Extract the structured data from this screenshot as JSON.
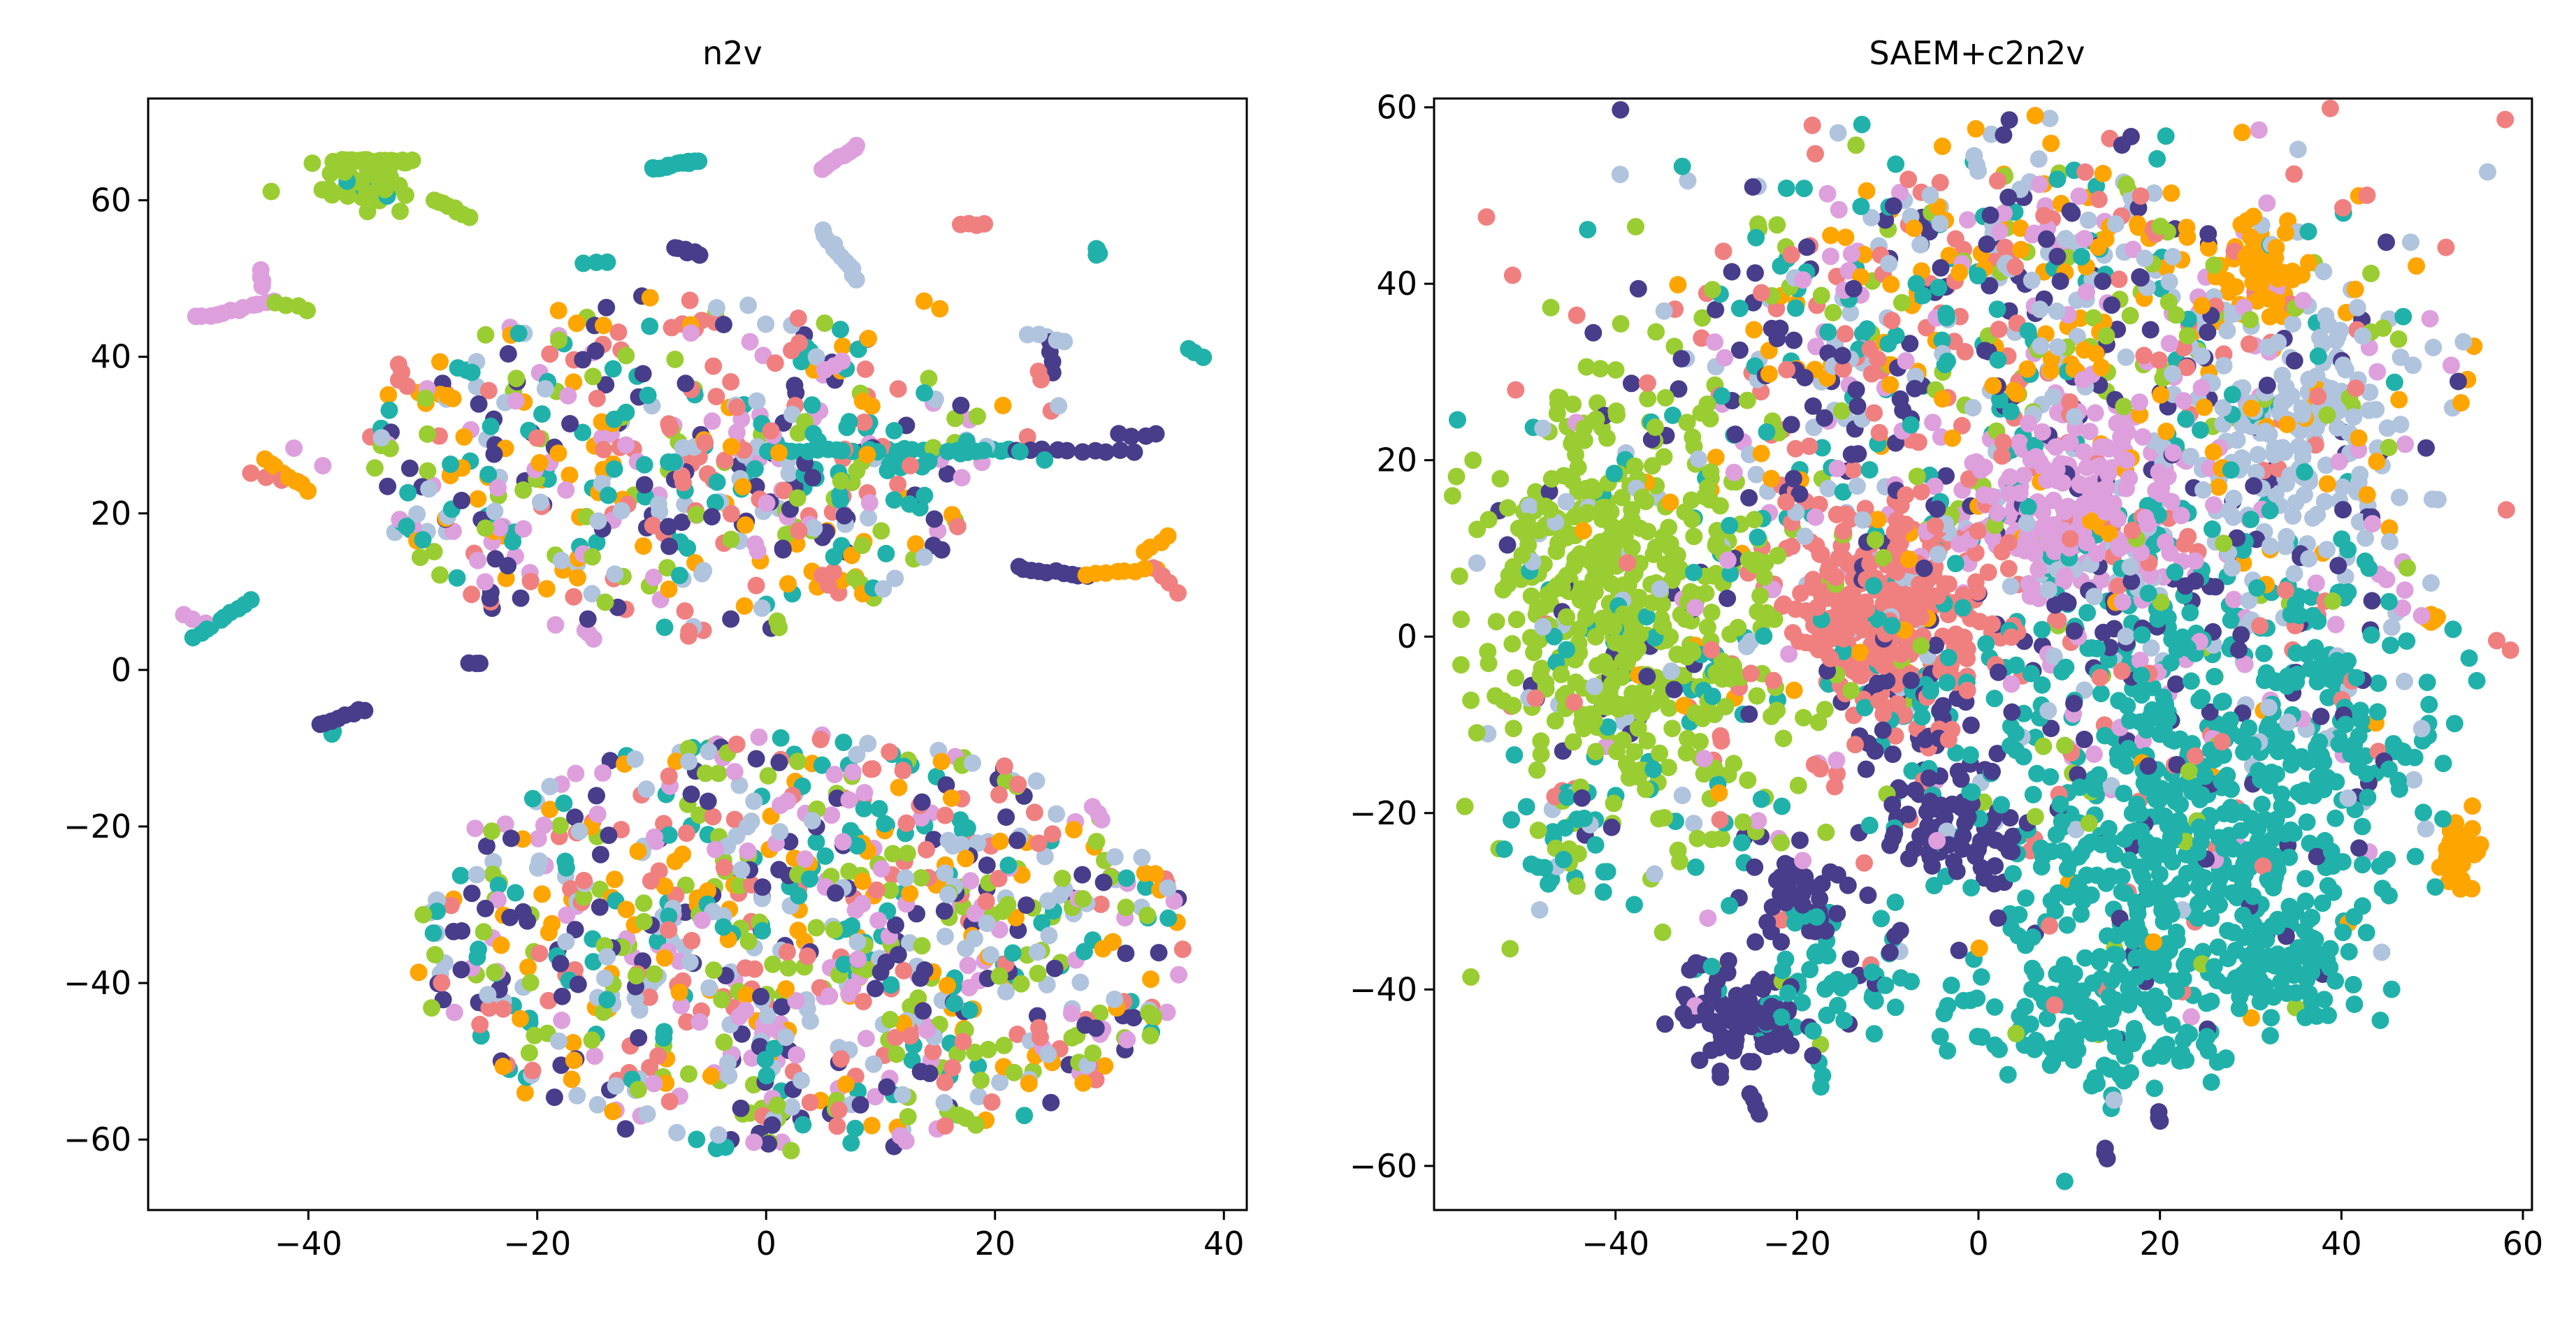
{
  "chart_data": [
    {
      "type": "scatter",
      "title": "n2v",
      "xlabel": "",
      "ylabel": "",
      "xlim": [
        -54,
        42
      ],
      "ylim": [
        -69,
        73
      ],
      "xticks": [
        -40,
        -20,
        0,
        20,
        40
      ],
      "yticks": [
        -60,
        -40,
        -20,
        0,
        20,
        40,
        60
      ],
      "xtick_labels": [
        "−40",
        "−20",
        "0",
        "20",
        "40"
      ],
      "ytick_labels": [
        "−60",
        "−40",
        "−20",
        "0",
        "20",
        "40",
        "60"
      ],
      "grid": false,
      "legend": "none",
      "series_colors": [
        "#483d8b",
        "#20b2aa",
        "#f08080",
        "#9acd32",
        "#ffa500",
        "#dda0dd",
        "#b0c4de"
      ],
      "clusters": [
        {
          "cx": -8,
          "cy": 26,
          "rx": 27,
          "ry": 22,
          "n": 430,
          "mix": [
            1,
            1,
            1,
            1,
            1,
            1,
            1
          ],
          "kind": "disk"
        },
        {
          "cx": 3,
          "cy": -35,
          "rx": 34,
          "ry": 27,
          "n": 800,
          "mix": [
            1,
            1,
            1,
            1,
            1,
            1,
            1
          ],
          "kind": "disk"
        },
        {
          "cx": -5,
          "cy": 26,
          "rx": 15,
          "ry": 6,
          "n": 130,
          "mix": [
            1,
            2,
            1,
            1,
            0.5,
            1,
            1
          ],
          "kind": "gauss"
        },
        {
          "cx": 5,
          "cy": -35,
          "rx": 11,
          "ry": 9,
          "n": 160,
          "mix": [
            1,
            1,
            1,
            1,
            1,
            1,
            1
          ],
          "kind": "gauss"
        },
        {
          "cx": -35,
          "cy": 63,
          "rx": 2.5,
          "ry": 1.5,
          "n": 45,
          "mix": [
            0,
            0.3,
            0,
            6,
            0,
            0,
            0
          ],
          "kind": "gauss"
        }
      ],
      "segments": [
        {
          "p1": [
            -38,
            65
          ],
          "p2": [
            -31,
            65
          ],
          "c": 3,
          "n": 16
        },
        {
          "p1": [
            -29,
            60
          ],
          "p2": [
            -26,
            58
          ],
          "c": 3,
          "n": 8
        },
        {
          "p1": [
            -10,
            64
          ],
          "p2": [
            -6,
            65
          ],
          "c": 1,
          "n": 14
        },
        {
          "p1": [
            5,
            64
          ],
          "p2": [
            8,
            67
          ],
          "c": 5,
          "n": 10
        },
        {
          "p1": [
            -50,
            45
          ],
          "p2": [
            -43,
            47
          ],
          "c": 5,
          "n": 12
        },
        {
          "p1": [
            -44,
            51
          ],
          "p2": [
            -44,
            49
          ],
          "c": 5,
          "n": 4
        },
        {
          "p1": [
            -43,
            47
          ],
          "p2": [
            -40,
            46
          ],
          "c": 3,
          "n": 4
        },
        {
          "p1": [
            -8,
            54
          ],
          "p2": [
            -6,
            53
          ],
          "c": 0,
          "n": 6
        },
        {
          "p1": [
            -16,
            52
          ],
          "p2": [
            -14,
            52
          ],
          "c": 1,
          "n": 3
        },
        {
          "p1": [
            5,
            56
          ],
          "p2": [
            8,
            50
          ],
          "c": 6,
          "n": 12
        },
        {
          "p1": [
            17,
            57
          ],
          "p2": [
            19,
            57
          ],
          "c": 2,
          "n": 4
        },
        {
          "p1": [
            29,
            54
          ],
          "p2": [
            29,
            53
          ],
          "c": 1,
          "n": 4
        },
        {
          "p1": [
            37,
            41
          ],
          "p2": [
            38,
            40
          ],
          "c": 1,
          "n": 3
        },
        {
          "p1": [
            -44,
            27
          ],
          "p2": [
            -40,
            23
          ],
          "c": 4,
          "n": 8
        },
        {
          "p1": [
            -45,
            25
          ],
          "p2": [
            -41,
            24
          ],
          "c": 2,
          "n": 4
        },
        {
          "p1": [
            -50,
            4
          ],
          "p2": [
            -45,
            9
          ],
          "c": 1,
          "n": 10
        },
        {
          "p1": [
            -51,
            7
          ],
          "p2": [
            -49,
            6
          ],
          "c": 5,
          "n": 3
        },
        {
          "p1": [
            -39,
            -7
          ],
          "p2": [
            -35,
            -5
          ],
          "c": 0,
          "n": 8
        },
        {
          "p1": [
            -26,
            1
          ],
          "p2": [
            -25,
            1
          ],
          "c": 0,
          "n": 3
        },
        {
          "p1": [
            -24,
            10
          ],
          "p2": [
            -24,
            8
          ],
          "c": 0,
          "n": 3
        },
        {
          "p1": [
            -32,
            19
          ],
          "p2": [
            -31,
            18
          ],
          "c": 1,
          "n": 3
        },
        {
          "p1": [
            -32,
            39
          ],
          "p2": [
            -32,
            37
          ],
          "c": 2,
          "n": 3
        },
        {
          "p1": [
            0,
            28
          ],
          "p2": [
            22,
            28
          ],
          "c": 1,
          "n": 30
        },
        {
          "p1": [
            22,
            28
          ],
          "p2": [
            32,
            28
          ],
          "c": 0,
          "n": 10
        },
        {
          "p1": [
            22,
            13
          ],
          "p2": [
            28,
            12
          ],
          "c": 0,
          "n": 10
        },
        {
          "p1": [
            28,
            12
          ],
          "p2": [
            34,
            13
          ],
          "c": 4,
          "n": 8
        },
        {
          "p1": [
            34,
            13
          ],
          "p2": [
            36,
            10
          ],
          "c": 2,
          "n": 4
        },
        {
          "p1": [
            33,
            15
          ],
          "p2": [
            35,
            17
          ],
          "c": 4,
          "n": 4
        },
        {
          "p1": [
            31,
            30
          ],
          "p2": [
            34,
            30
          ],
          "c": 0,
          "n": 4
        },
        {
          "p1": [
            23,
            43
          ],
          "p2": [
            26,
            42
          ],
          "c": 6,
          "n": 5
        },
        {
          "p1": [
            25,
            42
          ],
          "p2": [
            25,
            38
          ],
          "c": 0,
          "n": 4
        },
        {
          "p1": [
            24,
            38
          ],
          "p2": [
            24,
            37
          ],
          "c": 2,
          "n": 2
        },
        {
          "p1": [
            14,
            47
          ],
          "p2": [
            15,
            46
          ],
          "c": 4,
          "n": 2
        },
        {
          "p1": [
            -16,
            5
          ],
          "p2": [
            -15,
            4
          ],
          "c": 5,
          "n": 3
        },
        {
          "p1": [
            -38,
            -8
          ],
          "p2": [
            -38,
            -8
          ],
          "c": 1,
          "n": 2
        }
      ],
      "seed": 11
    },
    {
      "type": "scatter",
      "title": "SAEM+c2n2v",
      "xlabel": "",
      "ylabel": "",
      "xlim": [
        -60,
        61
      ],
      "ylim": [
        -65,
        61
      ],
      "xticks": [
        -40,
        -20,
        0,
        20,
        40,
        60
      ],
      "yticks": [
        -60,
        -40,
        -20,
        0,
        20,
        40,
        60
      ],
      "xtick_labels": [
        "−40",
        "−20",
        "0",
        "20",
        "40",
        "60"
      ],
      "ytick_labels": [
        "−60",
        "−40",
        "−20",
        "0",
        "20",
        "40",
        "60"
      ],
      "grid": false,
      "legend": "none",
      "series_colors": [
        "#483d8b",
        "#20b2aa",
        "#f08080",
        "#9acd32",
        "#ffa500",
        "#dda0dd",
        "#b0c4de"
      ],
      "clusters": [
        {
          "cx": -40,
          "cy": 5,
          "rx": 8,
          "ry": 12,
          "n": 520,
          "mix": [
            0.3,
            0.4,
            0.2,
            9,
            0.1,
            0.1,
            0.3
          ],
          "kind": "gauss"
        },
        {
          "cx": -10,
          "cy": 3,
          "rx": 6,
          "ry": 6,
          "n": 330,
          "mix": [
            0.3,
            0.3,
            9,
            0.2,
            0.2,
            0.1,
            0.2
          ],
          "kind": "gauss"
        },
        {
          "cx": 10,
          "cy": 15,
          "rx": 6,
          "ry": 5,
          "n": 240,
          "mix": [
            0.3,
            0.2,
            0.4,
            0.1,
            0.2,
            8,
            0.2
          ],
          "kind": "gauss"
        },
        {
          "cx": 35,
          "cy": 22,
          "rx": 7,
          "ry": 9,
          "n": 220,
          "mix": [
            0.3,
            0.3,
            0.3,
            0.3,
            0.3,
            0.3,
            8
          ],
          "kind": "gauss"
        },
        {
          "cx": 31,
          "cy": 42,
          "rx": 2.5,
          "ry": 2.5,
          "n": 55,
          "mix": [
            0,
            0,
            0,
            0,
            9,
            0,
            0
          ],
          "kind": "gauss"
        },
        {
          "cx": 53,
          "cy": -24,
          "rx": 1,
          "ry": 1.8,
          "n": 45,
          "mix": [
            0,
            0,
            0,
            0,
            9,
            0,
            0
          ],
          "kind": "gauss"
        },
        {
          "cx": 50,
          "cy": 2,
          "rx": 0.6,
          "ry": 0.4,
          "n": 6,
          "mix": [
            0,
            0,
            0,
            0,
            8,
            0,
            0
          ],
          "kind": "gauss"
        },
        {
          "cx": 10,
          "cy": 35,
          "rx": 20,
          "ry": 11,
          "n": 420,
          "mix": [
            1,
            1,
            1,
            1,
            1.2,
            1,
            1.3
          ],
          "kind": "gauss"
        },
        {
          "cx": 22,
          "cy": -28,
          "rx": 11,
          "ry": 10,
          "n": 420,
          "mix": [
            0.4,
            9,
            0.3,
            0.2,
            0.1,
            0.2,
            0.2
          ],
          "kind": "gauss"
        },
        {
          "cx": 12,
          "cy": -45,
          "rx": 6,
          "ry": 4,
          "n": 110,
          "mix": [
            0.2,
            9,
            0.2,
            0.1,
            0,
            0.3,
            0.2
          ],
          "kind": "gauss"
        },
        {
          "cx": 35,
          "cy": -38,
          "rx": 4,
          "ry": 3,
          "n": 60,
          "mix": [
            0.2,
            9,
            0.1,
            0,
            0,
            0,
            0.1
          ],
          "kind": "gauss"
        },
        {
          "cx": 20,
          "cy": -8,
          "rx": 14,
          "ry": 9,
          "n": 260,
          "mix": [
            1.2,
            6,
            0.5,
            0.3,
            0.2,
            0.5,
            0.5
          ],
          "kind": "gauss"
        },
        {
          "cx": 38,
          "cy": -12,
          "rx": 6,
          "ry": 6,
          "n": 90,
          "mix": [
            0.3,
            8,
            0.2,
            0.1,
            0,
            0.1,
            0.3
          ],
          "kind": "gauss"
        },
        {
          "cx": -26,
          "cy": -43,
          "rx": 3,
          "ry": 3,
          "n": 90,
          "mix": [
            9,
            0.2,
            0.1,
            0,
            0,
            0,
            0.1
          ],
          "kind": "gauss"
        },
        {
          "cx": -20,
          "cy": -30,
          "rx": 3,
          "ry": 2.5,
          "n": 45,
          "mix": [
            9,
            0.3,
            0,
            0,
            0,
            0,
            0
          ],
          "kind": "gauss"
        },
        {
          "cx": -3,
          "cy": -22,
          "rx": 4,
          "ry": 3.5,
          "n": 80,
          "mix": [
            9,
            0.5,
            0.2,
            0,
            0,
            0.1,
            0.3
          ],
          "kind": "gauss"
        },
        {
          "cx": -5,
          "cy": -10,
          "rx": 5,
          "ry": 4,
          "n": 50,
          "mix": [
            7,
            1,
            0.5,
            0.2,
            0,
            0.5,
            0.5
          ],
          "kind": "gauss"
        },
        {
          "cx": -15,
          "cy": -38,
          "rx": 6,
          "ry": 5,
          "n": 70,
          "mix": [
            0.6,
            7,
            0.3,
            0.2,
            0,
            0.2,
            0.4
          ],
          "kind": "gauss"
        },
        {
          "cx": -45,
          "cy": -22,
          "rx": 4,
          "ry": 4,
          "n": 35,
          "mix": [
            1,
            6,
            0.5,
            0.2,
            0,
            0.2,
            1.5
          ],
          "kind": "gauss"
        },
        {
          "cx": -15,
          "cy": 25,
          "rx": 12,
          "ry": 12,
          "n": 240,
          "mix": [
            1.5,
            1.5,
            1.2,
            0.8,
            0.5,
            0.5,
            0.8
          ],
          "kind": "gauss"
        },
        {
          "cx": 25,
          "cy": 5,
          "rx": 14,
          "ry": 10,
          "n": 230,
          "mix": [
            1.5,
            2.5,
            1,
            0.5,
            0.3,
            0.6,
            1.2
          ],
          "kind": "gauss"
        },
        {
          "cx": -30,
          "cy": -10,
          "rx": 12,
          "ry": 10,
          "n": 130,
          "mix": [
            1,
            2,
            0.6,
            2,
            0.3,
            0.3,
            0.7
          ],
          "kind": "gauss"
        },
        {
          "cx": 5,
          "cy": 46,
          "rx": 12,
          "ry": 5,
          "n": 120,
          "mix": [
            1,
            0.8,
            0.8,
            0.5,
            1,
            0.8,
            1.5
          ],
          "kind": "gauss"
        },
        {
          "cx": -22,
          "cy": 45,
          "rx": 3,
          "ry": 3,
          "n": 15,
          "mix": [
            0.5,
            3,
            0.2,
            0.5,
            0.2,
            0,
            0.2
          ],
          "kind": "gauss"
        }
      ],
      "segments": [
        {
          "p1": [
            -25,
            -52
          ],
          "p2": [
            -24,
            -54
          ],
          "c": 0,
          "n": 4
        },
        {
          "p1": [
            14,
            -58
          ],
          "p2": [
            14,
            -59
          ],
          "c": 0,
          "n": 3
        },
        {
          "p1": [
            20,
            -54
          ],
          "p2": [
            20,
            -55
          ],
          "c": 0,
          "n": 3
        }
      ],
      "seed": 29
    }
  ]
}
